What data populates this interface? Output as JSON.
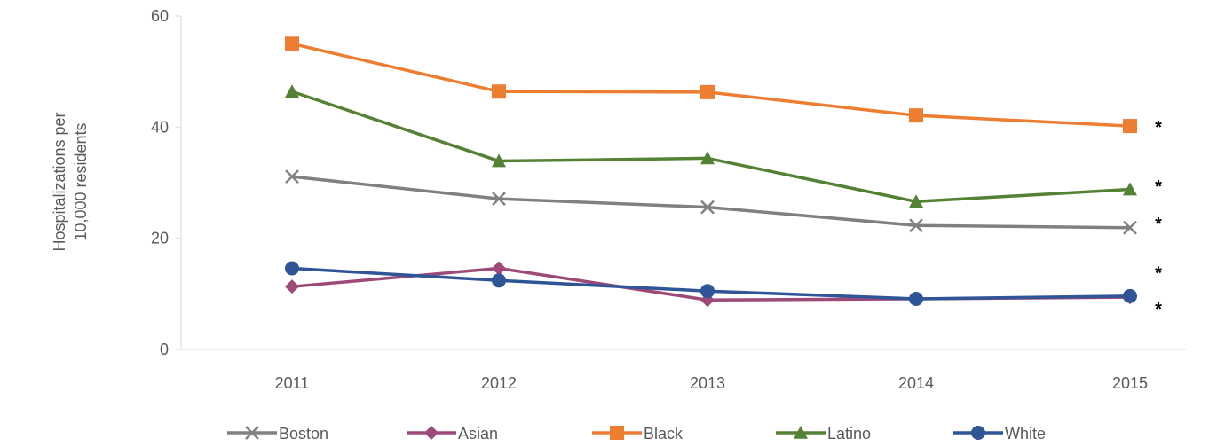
{
  "chart_data": {
    "type": "line",
    "title": "",
    "xlabel": "",
    "ylabel_lines": [
      "Hospitalizations per",
      "10,000 residents"
    ],
    "x": [
      "2011",
      "2012",
      "2013",
      "2014",
      "2015"
    ],
    "ylim": [
      0,
      60
    ],
    "yticks": [
      "0",
      "20",
      "40",
      "60"
    ],
    "grid": false,
    "legend_position": "bottom",
    "series": [
      {
        "name": "Boston",
        "color": "#808080",
        "marker": "x",
        "values": [
          31.1,
          27.1,
          25.6,
          22.3,
          21.9
        ]
      },
      {
        "name": "Asian",
        "color": "#9E4A78",
        "marker": "diamond",
        "values": [
          11.3,
          14.6,
          8.9,
          9.1,
          9.4
        ]
      },
      {
        "name": "Black",
        "color": "#ED7D31",
        "marker": "square",
        "values": [
          55.0,
          46.4,
          46.3,
          42.1,
          40.2
        ]
      },
      {
        "name": "Latino",
        "color": "#548235",
        "marker": "triangle",
        "values": [
          46.4,
          33.9,
          34.4,
          26.6,
          28.8
        ]
      },
      {
        "name": "White",
        "color": "#2F5597",
        "marker": "circle",
        "values": [
          14.6,
          12.4,
          10.5,
          9.1,
          9.6
        ]
      }
    ],
    "significance_marker": "*",
    "significance_values": [
      40.2,
      29.5,
      22.8,
      14.0,
      7.5
    ]
  }
}
